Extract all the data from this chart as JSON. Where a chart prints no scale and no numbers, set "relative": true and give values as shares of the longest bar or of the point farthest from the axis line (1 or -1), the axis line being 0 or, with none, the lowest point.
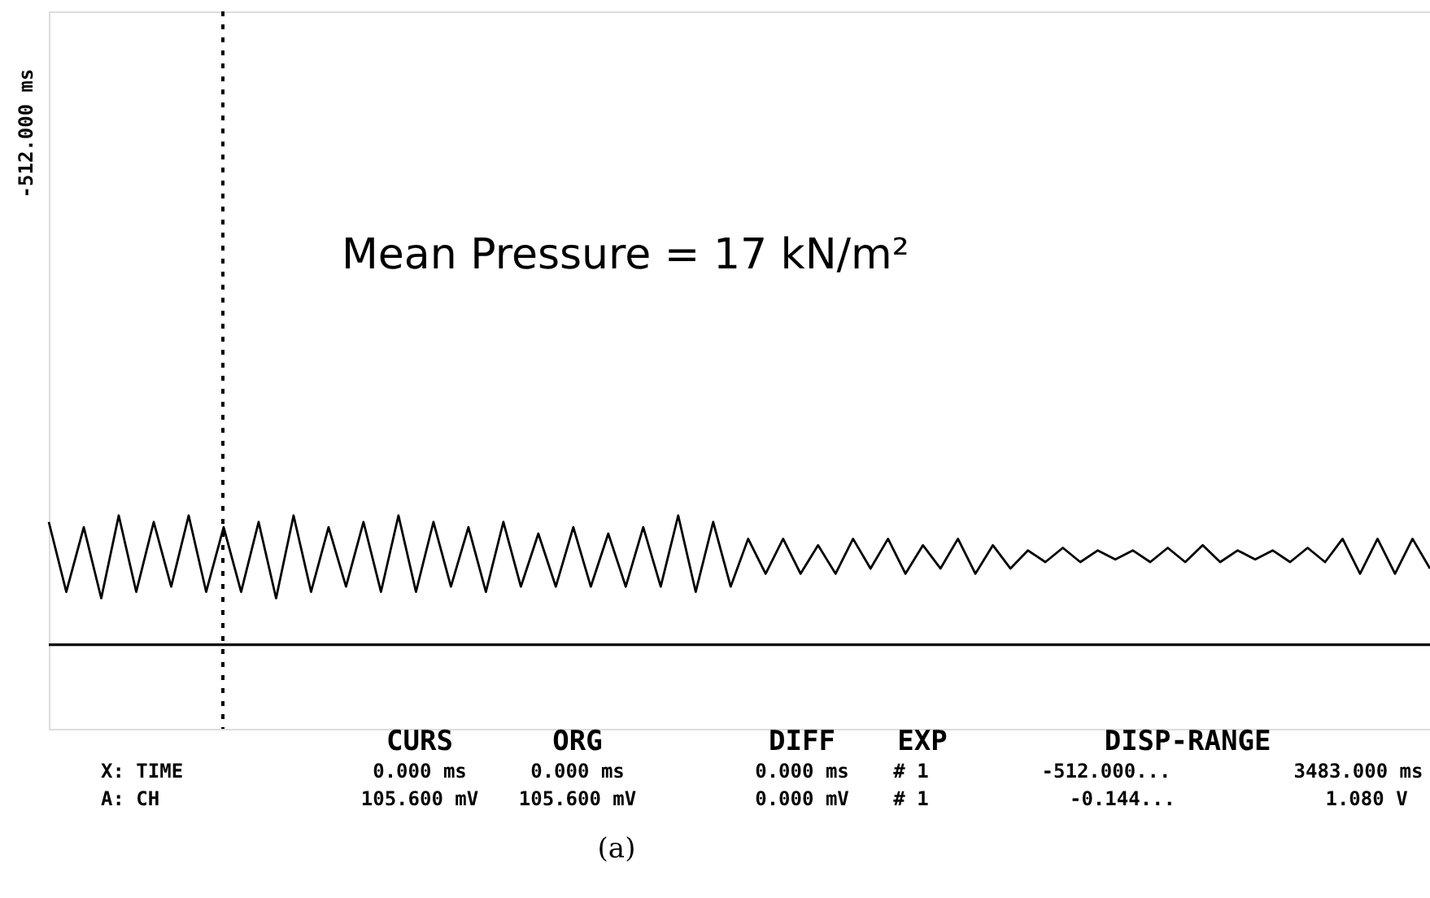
{
  "chart_data": {
    "type": "line",
    "relative": true,
    "categories": [
      null,
      null,
      null,
      null,
      null,
      null,
      null,
      null,
      null,
      null,
      null,
      null,
      null,
      null,
      null,
      null,
      null,
      null,
      null,
      null,
      null,
      null,
      null,
      null,
      null,
      null,
      null,
      null,
      null,
      null,
      null,
      null,
      null,
      null,
      null,
      null,
      null,
      null,
      null,
      null,
      null,
      null,
      null,
      null,
      null,
      null,
      null,
      null,
      null,
      null,
      null,
      null,
      null,
      null,
      null,
      null,
      null,
      null,
      null,
      null,
      null,
      null,
      null,
      null,
      null,
      null,
      null,
      null,
      null,
      null,
      null,
      null,
      null,
      null,
      null,
      null,
      null,
      null,
      null,
      null
    ],
    "series": [
      {
        "color": "#000000",
        "values": [
          0.95,
          0.41,
          0.91,
          0.36,
          1,
          0.41,
          0.95,
          0.45,
          1,
          0.41,
          0.91,
          0.41,
          0.95,
          0.36,
          1,
          0.41,
          0.91,
          0.45,
          0.95,
          0.41,
          1,
          0.41,
          0.95,
          0.45,
          0.91,
          0.41,
          0.95,
          0.45,
          0.86,
          0.45,
          0.91,
          0.45,
          0.86,
          0.45,
          0.91,
          0.45,
          1,
          0.41,
          0.95,
          0.45,
          0.82,
          0.55,
          0.82,
          0.55,
          0.77,
          0.55,
          0.82,
          0.59,
          0.82,
          0.55,
          0.77,
          0.59,
          0.82,
          0.55,
          0.77,
          0.59,
          0.73,
          0.64,
          0.75,
          0.64,
          0.73,
          0.66,
          0.73,
          0.64,
          0.75,
          0.64,
          0.77,
          0.64,
          0.73,
          0.66,
          0.73,
          0.64,
          0.75,
          0.64,
          0.82,
          0.55,
          0.82,
          0.55,
          0.82,
          0.59
        ]
      }
    ],
    "marker": "none",
    "line_style": "solid",
    "ref_lines": [
      {
        "axis": "y",
        "value": 0,
        "color": "#000000",
        "line_style": "solid"
      }
    ],
    "annotations": [
      "Mean Pressure = 17 kN/m²",
      "CURS",
      "ORG",
      "DIFF",
      "EXP",
      "DISP-RANGE",
      "X: TIME",
      "0.000 ms",
      "0.000 ms",
      "0.000 ms",
      "# 1",
      "-512.000...",
      "3483.000 ms",
      "A: CH",
      "105.600 mV",
      "105.600 mV",
      "0.000 mV",
      "# 1",
      "-0.144...",
      "1.080 V",
      "(a)",
      "-512.000 ms"
    ]
  }
}
